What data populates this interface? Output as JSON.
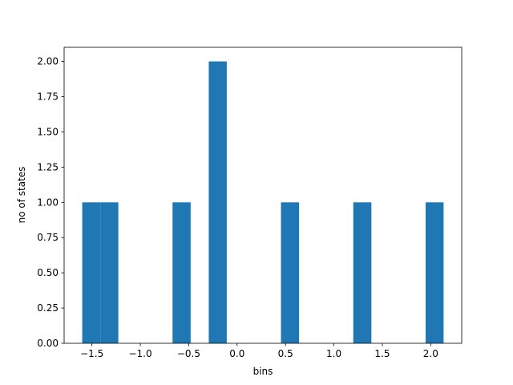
{
  "chart_data": {
    "type": "histogram",
    "xlabel": "bins",
    "ylabel": "no of states",
    "bins": [
      -1.6,
      -1.413,
      -1.227,
      -1.04,
      -0.853,
      -0.667,
      -0.48,
      -0.293,
      -0.107,
      0.08,
      0.267,
      0.453,
      0.64,
      0.827,
      1.013,
      1.2,
      1.387,
      1.573,
      1.76,
      1.947,
      2.133
    ],
    "values": [
      1,
      1,
      0,
      0,
      0,
      1,
      0,
      2,
      0,
      0,
      0,
      1,
      0,
      0,
      0,
      1,
      0,
      0,
      0,
      1
    ],
    "color": "#1f77b4",
    "xlim": [
      -1.787,
      2.32
    ],
    "ylim": [
      0,
      2.1
    ],
    "xticks": [
      {
        "value": -1.5,
        "label": "−1.5"
      },
      {
        "value": -1.0,
        "label": "−1.0"
      },
      {
        "value": -0.5,
        "label": "−0.5"
      },
      {
        "value": 0,
        "label": "0.0"
      },
      {
        "value": 0.5,
        "label": "0.5"
      },
      {
        "value": 1.0,
        "label": "1.0"
      },
      {
        "value": 1.5,
        "label": "1.5"
      },
      {
        "value": 2.0,
        "label": "2.0"
      }
    ],
    "yticks": [
      {
        "value": 0,
        "label": "0.00"
      },
      {
        "value": 0.25,
        "label": "0.25"
      },
      {
        "value": 0.5,
        "label": "0.50"
      },
      {
        "value": 0.75,
        "label": "0.75"
      },
      {
        "value": 1.0,
        "label": "1.00"
      },
      {
        "value": 1.25,
        "label": "1.25"
      },
      {
        "value": 1.5,
        "label": "1.50"
      },
      {
        "value": 1.75,
        "label": "1.75"
      },
      {
        "value": 2.0,
        "label": "2.00"
      }
    ]
  }
}
